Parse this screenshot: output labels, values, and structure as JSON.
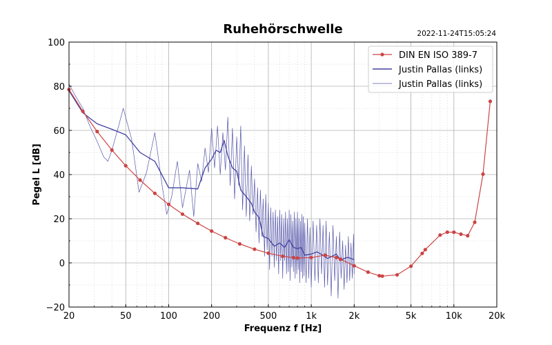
{
  "chart_data": {
    "type": "line",
    "title": "Ruhehörschwelle",
    "timestamp": "2022-11-24T15:05:24",
    "xlabel": "Frequenz f [Hz]",
    "ylabel": "Pegel L [dB]",
    "x_scale": "log",
    "xlim": [
      20,
      20000
    ],
    "ylim": [
      -20,
      100
    ],
    "grid": true,
    "legend_position": "top-right",
    "x_ticks": [
      {
        "value": 20,
        "label": "20"
      },
      {
        "value": 50,
        "label": "50"
      },
      {
        "value": 100,
        "label": "100"
      },
      {
        "value": 200,
        "label": "200"
      },
      {
        "value": 500,
        "label": "500"
      },
      {
        "value": 1000,
        "label": "1k"
      },
      {
        "value": 2000,
        "label": "2k"
      },
      {
        "value": 5000,
        "label": "5k"
      },
      {
        "value": 10000,
        "label": "10k"
      },
      {
        "value": 20000,
        "label": "20k"
      }
    ],
    "y_ticks": [
      {
        "value": -20,
        "label": "−20"
      },
      {
        "value": 0,
        "label": "0"
      },
      {
        "value": 20,
        "label": "20"
      },
      {
        "value": 40,
        "label": "40"
      },
      {
        "value": 60,
        "label": "60"
      },
      {
        "value": 80,
        "label": "80"
      },
      {
        "value": 100,
        "label": "100"
      }
    ],
    "series": [
      {
        "name": "DIN EN ISO 389-7",
        "color": "#cc4444",
        "style": "line-markers",
        "x": [
          20,
          25,
          31.5,
          40,
          50,
          63,
          80,
          100,
          125,
          160,
          200,
          250,
          315,
          400,
          500,
          630,
          750,
          800,
          1000,
          1250,
          1500,
          1600,
          2000,
          2500,
          3000,
          3150,
          4000,
          5000,
          6000,
          6300,
          8000,
          9000,
          10000,
          11200,
          12500,
          14000,
          16000,
          18000
        ],
        "y": [
          78.5,
          68.7,
          59.5,
          51.1,
          44.0,
          37.5,
          31.5,
          26.5,
          22.1,
          17.9,
          14.4,
          11.4,
          8.6,
          6.2,
          4.4,
          3.0,
          2.4,
          2.2,
          2.4,
          3.5,
          2.4,
          1.7,
          -1.3,
          -4.2,
          -5.8,
          -6.0,
          -5.4,
          -1.5,
          4.3,
          6.0,
          12.6,
          13.9,
          13.9,
          13.0,
          12.3,
          18.4,
          40.2,
          73.2
        ]
      },
      {
        "name": "Justin Pallas (links)",
        "color": "#4040a0",
        "style": "line",
        "x": [
          20,
          25,
          31.5,
          40,
          50,
          63,
          80,
          100,
          125,
          160,
          180,
          200,
          215,
          230,
          245,
          260,
          280,
          300,
          320,
          350,
          380,
          400,
          430,
          460,
          500,
          550,
          600,
          650,
          700,
          750,
          800,
          850,
          900,
          1000,
          1100,
          1200,
          1300,
          1400,
          1500,
          1600,
          1700,
          1800,
          2000
        ],
        "y": [
          78,
          68,
          63,
          60.5,
          58,
          50,
          46,
          34,
          34,
          33.5,
          43,
          47,
          51,
          50,
          55.5,
          48.5,
          43,
          41.5,
          33,
          30,
          27,
          23,
          20.5,
          12,
          11,
          7.5,
          9,
          7,
          10.5,
          7,
          6.5,
          7,
          3.5,
          4,
          5,
          3.5,
          2,
          3,
          4,
          1,
          2,
          2.5,
          1.5
        ]
      },
      {
        "name": "Justin Pallas (links)",
        "color": "#5555aa",
        "style": "thin-line",
        "x": [
          20,
          22,
          25,
          28,
          31.5,
          35,
          37.5,
          40,
          45,
          48,
          55,
          62,
          70,
          80,
          90,
          97,
          105,
          115,
          125,
          140,
          150,
          160,
          170,
          180,
          190,
          200,
          210,
          220,
          230,
          240,
          250,
          260,
          270,
          280,
          290,
          300,
          310,
          320,
          330,
          340,
          350,
          360,
          370,
          380,
          390,
          400,
          410,
          420,
          430,
          440,
          450,
          460,
          470,
          480,
          490,
          500,
          510,
          520,
          530,
          540,
          550,
          560,
          570,
          580,
          590,
          600,
          610,
          620,
          630,
          640,
          650,
          660,
          670,
          680,
          690,
          700,
          710,
          720,
          730,
          740,
          750,
          760,
          770,
          780,
          790,
          800,
          810,
          820,
          830,
          840,
          850,
          860,
          870,
          880,
          890,
          900,
          920,
          940,
          960,
          980,
          1000,
          1030,
          1060,
          1090,
          1120,
          1150,
          1180,
          1210,
          1240,
          1270,
          1300,
          1340,
          1380,
          1420,
          1460,
          1500,
          1540,
          1580,
          1620,
          1660,
          1700,
          1740,
          1780,
          1820,
          1860,
          1900,
          1940,
          1980,
          2000
        ],
        "y": [
          81,
          76,
          70,
          62,
          55,
          48,
          46,
          51,
          63,
          70,
          56,
          32,
          41,
          59,
          35,
          22,
          30,
          46,
          25,
          42,
          21,
          45,
          37,
          52,
          41,
          61,
          43,
          62,
          40,
          59,
          42,
          66,
          35,
          61,
          29,
          57,
          35,
          62,
          24,
          53,
          21,
          49,
          19,
          44,
          22,
          38,
          14,
          34,
          9,
          33,
          12,
          29,
          3,
          31,
          6,
          27,
          -3,
          25,
          3,
          23,
          -2,
          24,
          1,
          21,
          -5,
          24,
          1,
          22,
          -7,
          20,
          1,
          23,
          -5,
          20,
          -4,
          24,
          -8,
          22,
          -2,
          19,
          -4,
          23,
          -7,
          20,
          -5,
          23,
          -3,
          20,
          -9,
          19,
          -4,
          22,
          -7,
          21,
          -6,
          18,
          -9,
          20,
          -7,
          16,
          -11,
          19,
          -8,
          17,
          -9,
          20,
          -5,
          17,
          -11,
          19,
          -10,
          14,
          -15,
          17,
          -8,
          12,
          -16,
          14,
          -7,
          10,
          -12,
          8,
          -9,
          12,
          -8,
          9,
          -7,
          13,
          -5
        ]
      }
    ]
  }
}
